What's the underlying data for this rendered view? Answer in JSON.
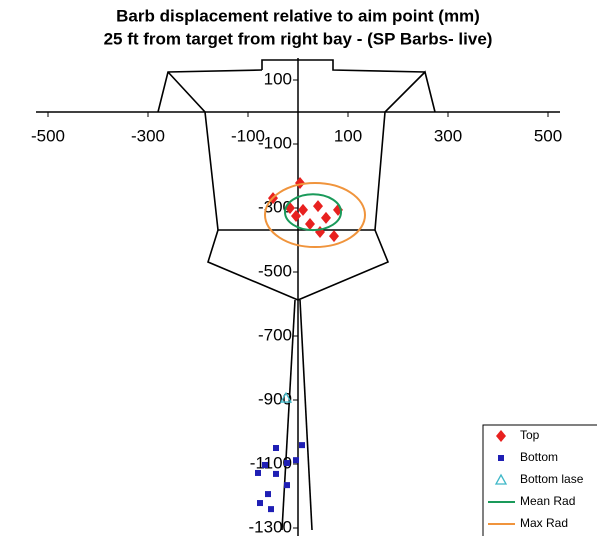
{
  "chart_data": {
    "type": "scatter",
    "title": "Barb displacement relative to aim point (mm)",
    "subtitle": "25 ft from target from right bay - (SP Barbs- live)",
    "xlim": [
      -500,
      500
    ],
    "xticks": [
      -500,
      -300,
      -100,
      100,
      300,
      500
    ],
    "ylim": [
      -1300,
      200
    ],
    "yticks": [
      100,
      -100,
      -300,
      -500,
      -700,
      -900,
      -1100,
      -1300
    ],
    "legend": "bottom-right",
    "series": [
      {
        "name": "Top",
        "color": "#e8211f",
        "marker": "diamond",
        "x": [
          4,
          -50,
          -16,
          10,
          40,
          80,
          -4,
          24,
          56,
          44,
          72
        ],
        "values": [
          -222,
          -269,
          -300,
          -306,
          -294,
          -306,
          -325,
          -350,
          -331,
          -375,
          -388
        ]
      },
      {
        "name": "Bottom",
        "color": "#1f1fb4",
        "marker": "square",
        "x": [
          8,
          -4,
          -22,
          -44,
          -66,
          -44,
          -80,
          -22,
          -60,
          -76,
          -54
        ],
        "values": [
          -1041,
          -1088,
          -1097,
          -1050,
          -1103,
          -1131,
          -1128,
          -1166,
          -1194,
          -1222,
          -1241
        ]
      },
      {
        "name": "Bottom lase",
        "color": "#3fb8c8",
        "marker": "triangle",
        "x": [
          -24
        ],
        "values": [
          -894
        ]
      },
      {
        "name": "Mean Rad",
        "color": "#1a9a5a",
        "marker": "circle",
        "x": [
          30
        ],
        "values": [
          -313
        ],
        "radius": 56
      },
      {
        "name": "Max Rad",
        "color": "#f0943c",
        "marker": "circle",
        "x": [
          34
        ],
        "values": [
          -322
        ],
        "radius": 100
      }
    ]
  }
}
